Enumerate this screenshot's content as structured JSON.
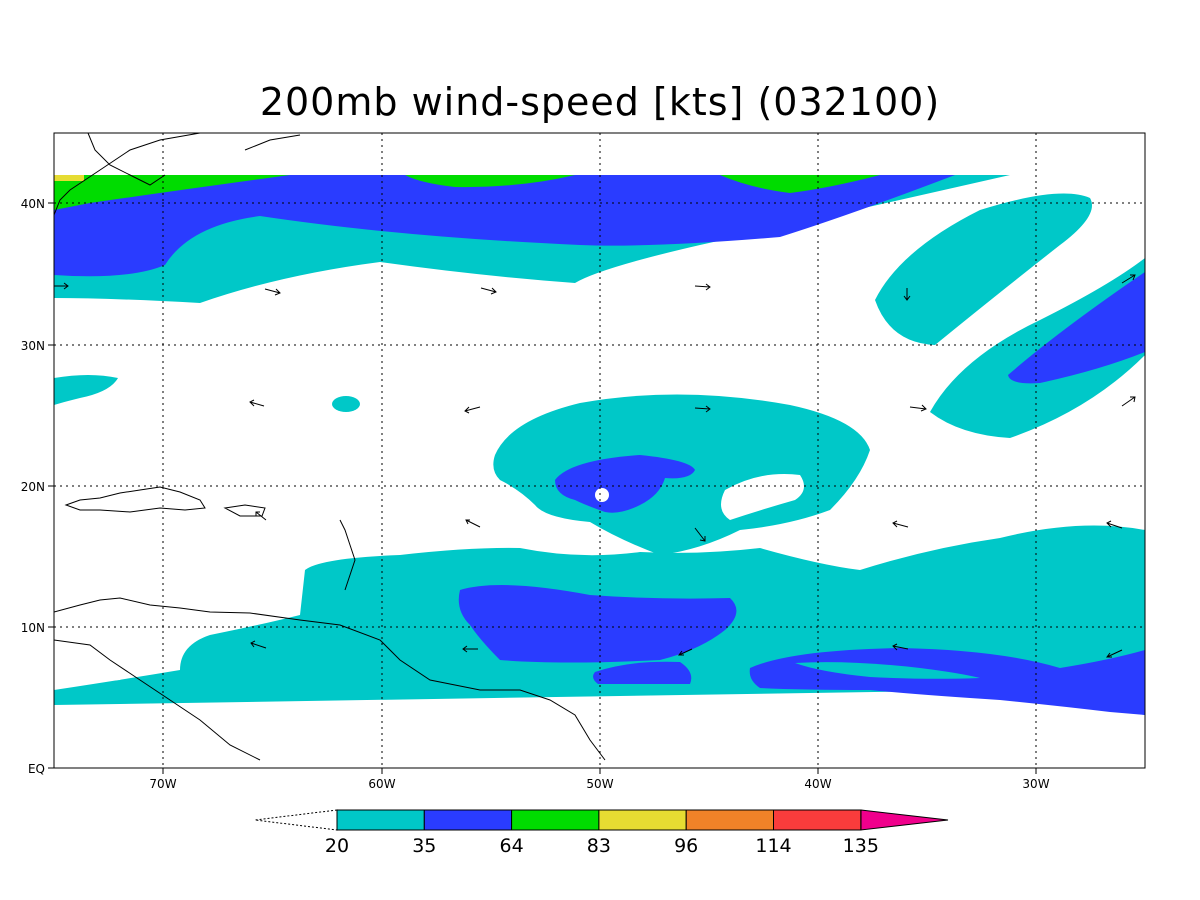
{
  "title": "200mb wind-speed [kts] (032100)",
  "map": {
    "region": "Tropical Atlantic / Caribbean",
    "lon_range": [
      -75,
      -25
    ],
    "lat_range": [
      0,
      45
    ],
    "gridlines": "dotted",
    "lat_ticks": [
      "40N",
      "30N",
      "20N",
      "10N",
      "EQ"
    ],
    "lon_ticks": [
      "70W",
      "60W",
      "50W",
      "40W",
      "30W"
    ]
  },
  "colorbar": {
    "labels": [
      "20",
      "35",
      "64",
      "83",
      "96",
      "114",
      "135"
    ],
    "colors": [
      "#00c8c8",
      "#2a3cff",
      "#00dc00",
      "#e6dc32",
      "#f08228",
      "#fa3c3c",
      "#f0008c"
    ]
  }
}
